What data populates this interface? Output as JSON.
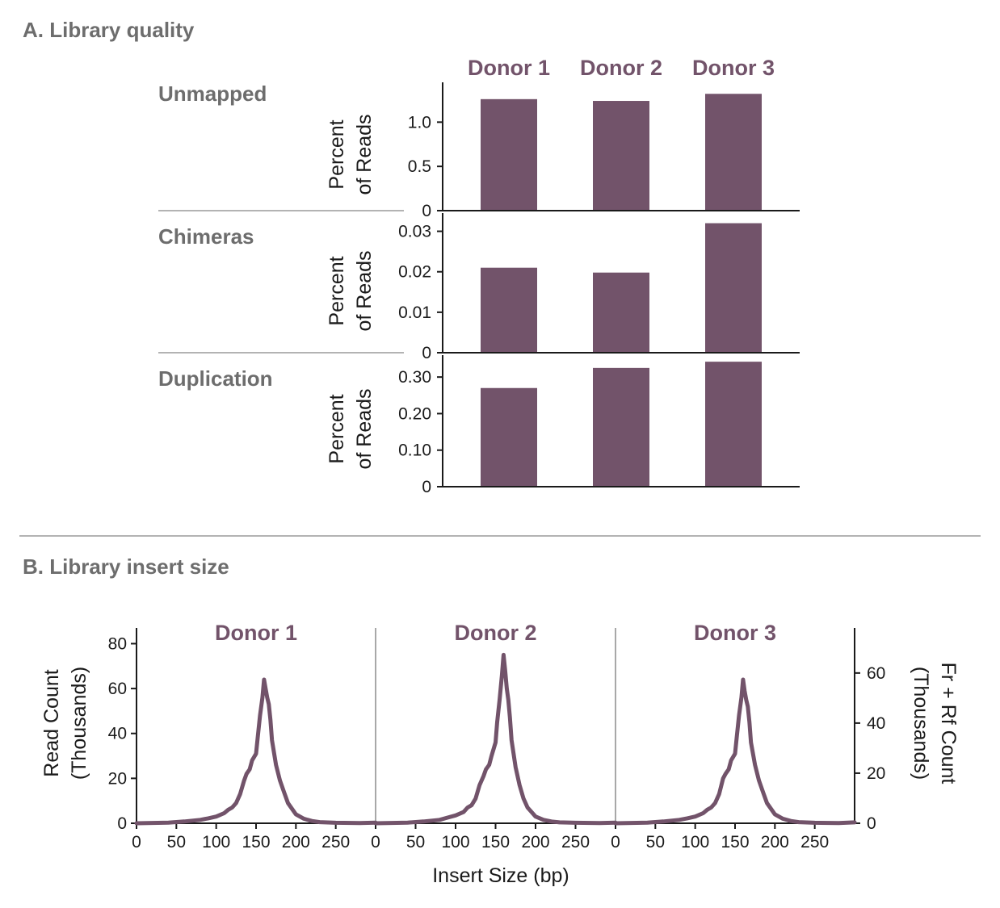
{
  "colors": {
    "bar": "#72536a",
    "line": "#72536a",
    "label_gray": "#6d6d6d",
    "divider": "#b3b3b3",
    "axis": "#1a1a1a"
  },
  "panel_a": {
    "title": "A. Library quality",
    "donors": [
      "Donor 1",
      "Donor 2",
      "Donor 3"
    ]
  },
  "panel_b": {
    "title": "B. Library insert size",
    "donors": [
      "Donor 1",
      "Donor 2",
      "Donor 3"
    ],
    "xlabel": "Insert Size (bp)",
    "ylabel_left": [
      "Read Count",
      "(Thousands)"
    ],
    "ylabel_right": [
      "Fr + Rf Count",
      "(Thousands)"
    ]
  },
  "chart_data": [
    {
      "type": "bar",
      "row_label": "Unmapped",
      "ylabel": [
        "Percent",
        "of Reads"
      ],
      "categories": [
        "Donor 1",
        "Donor 2",
        "Donor 3"
      ],
      "values": [
        1.26,
        1.24,
        1.32
      ],
      "ylim": [
        0,
        1.45
      ],
      "yticks": [
        0,
        0.5,
        1.0
      ],
      "ytick_labels": [
        "0",
        "0.5",
        "1.0"
      ]
    },
    {
      "type": "bar",
      "row_label": "Chimeras",
      "ylabel": [
        "Percent",
        "of Reads"
      ],
      "categories": [
        "Donor 1",
        "Donor 2",
        "Donor 3"
      ],
      "values": [
        0.021,
        0.0198,
        0.032
      ],
      "ylim": [
        0,
        0.0345
      ],
      "yticks": [
        0,
        0.01,
        0.02,
        0.03
      ],
      "ytick_labels": [
        "0",
        "0.01",
        "0.02",
        "0.03"
      ]
    },
    {
      "type": "bar",
      "row_label": "Duplication",
      "ylabel": [
        "Percent",
        "of Reads"
      ],
      "categories": [
        "Donor 1",
        "Donor 2",
        "Donor 3"
      ],
      "values": [
        0.27,
        0.325,
        0.342
      ],
      "ylim": [
        0,
        0.36
      ],
      "yticks": [
        0,
        0.1,
        0.2,
        0.3
      ],
      "ytick_labels": [
        "0",
        "0.10",
        "0.20",
        "0.30"
      ]
    },
    {
      "type": "line",
      "xlabel": "Insert Size (bp)",
      "ylabel": "Read Count (Thousands)",
      "ylabel_right": "Fr + Rf Count (Thousands)",
      "xlim": [
        0,
        300
      ],
      "xticks": [
        0,
        50,
        100,
        150,
        200,
        250
      ],
      "ylim": [
        0,
        87
      ],
      "yticks_left": [
        0,
        20,
        40,
        60,
        80
      ],
      "yticks_right": [
        0,
        20,
        40,
        60
      ],
      "ylim_right": [
        0,
        78
      ],
      "series": [
        {
          "name": "Donor 1",
          "x": [
            0,
            40,
            60,
            80,
            90,
            100,
            110,
            115,
            120,
            125,
            130,
            135,
            138,
            142,
            145,
            150,
            152,
            155,
            158,
            160,
            162,
            164,
            166,
            168,
            170,
            175,
            180,
            185,
            190,
            200,
            210,
            220,
            230,
            250,
            280,
            300
          ],
          "y": [
            0,
            0.3,
            0.8,
            1.5,
            2.2,
            3,
            4.5,
            6,
            7,
            9,
            13,
            19,
            22,
            24,
            28,
            31,
            38,
            48,
            56,
            64,
            60,
            56,
            53,
            46,
            37,
            26,
            19,
            14,
            9,
            4,
            2,
            1,
            0.5,
            0.2,
            0.1,
            0.3
          ]
        },
        {
          "name": "Donor 2",
          "x": [
            0,
            40,
            60,
            80,
            90,
            100,
            110,
            115,
            120,
            125,
            130,
            135,
            138,
            142,
            145,
            150,
            152,
            155,
            158,
            160,
            162,
            164,
            166,
            168,
            170,
            175,
            180,
            185,
            190,
            200,
            210,
            220,
            230,
            250,
            280,
            300
          ],
          "y": [
            0,
            0.3,
            0.8,
            1.5,
            2.5,
            3.5,
            5,
            7,
            8,
            11,
            17,
            21,
            24,
            26,
            30,
            36,
            45,
            55,
            66,
            75,
            68,
            60,
            55,
            47,
            37,
            25,
            17,
            11,
            7,
            3,
            1.5,
            0.8,
            0.4,
            0.2,
            0.1,
            0.3
          ]
        },
        {
          "name": "Donor 3",
          "x": [
            0,
            40,
            60,
            80,
            90,
            100,
            110,
            115,
            120,
            125,
            130,
            135,
            138,
            142,
            145,
            150,
            152,
            155,
            158,
            160,
            162,
            164,
            166,
            168,
            170,
            175,
            180,
            185,
            190,
            200,
            210,
            220,
            230,
            250,
            280,
            300
          ],
          "y": [
            0,
            0.3,
            0.8,
            1.5,
            2.2,
            3,
            4.5,
            6,
            7,
            9,
            13,
            20,
            22,
            24,
            28,
            31,
            38,
            48,
            56,
            64,
            59,
            55,
            52,
            45,
            36,
            26,
            19,
            14,
            9,
            4,
            2,
            1,
            0.5,
            0.2,
            0.1,
            0.4
          ]
        }
      ]
    }
  ]
}
